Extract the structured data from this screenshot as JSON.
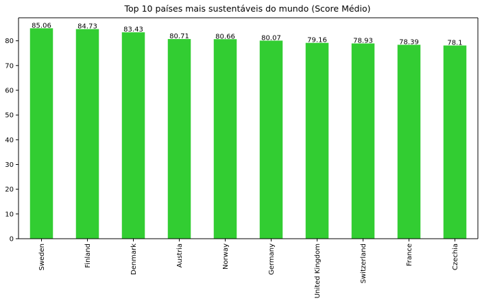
{
  "chart_data": {
    "type": "bar",
    "title": "Top 10 países mais sustentáveis do mundo (Score Médio)",
    "xlabel": "",
    "ylabel": "",
    "categories": [
      "Sweden",
      "Finland",
      "Denmark",
      "Austria",
      "Norway",
      "Germany",
      "United Kingdom",
      "Switzerland",
      "France",
      "Czechia"
    ],
    "values": [
      85.06,
      84.73,
      83.43,
      80.71,
      80.66,
      80.07,
      79.16,
      78.93,
      78.39,
      78.1
    ],
    "data_labels": [
      "85.06",
      "84.73",
      "83.43",
      "80.71",
      "80.66",
      "80.07",
      "79.16",
      "78.93",
      "78.39",
      "78.1"
    ],
    "ylim": [
      0,
      89.3
    ],
    "yticks": [
      0,
      10,
      20,
      30,
      40,
      50,
      60,
      70,
      80
    ],
    "bar_color": "#32cd32",
    "grid": false,
    "legend": "none"
  }
}
